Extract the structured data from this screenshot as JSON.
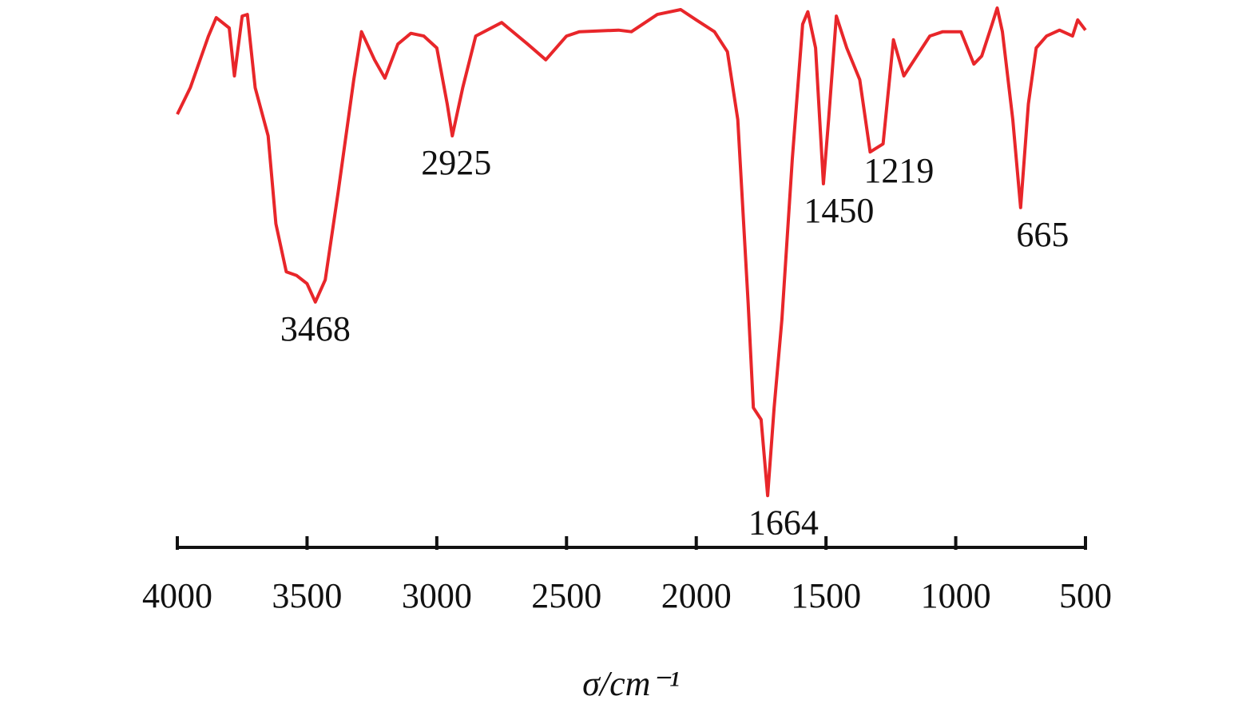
{
  "chart_data": {
    "type": "line",
    "xlabel": "σ/cm⁻¹",
    "xlim": [
      4000,
      500
    ],
    "xticks": [
      4000,
      3500,
      3000,
      2500,
      2000,
      1500,
      1000,
      500
    ],
    "ylim": [
      0,
      100
    ],
    "series": [
      {
        "color": "#e8262a",
        "x": [
          4000,
          3950,
          3880,
          3850,
          3800,
          3780,
          3750,
          3730,
          3700,
          3650,
          3620,
          3580,
          3540,
          3500,
          3468,
          3430,
          3380,
          3320,
          3290,
          3240,
          3200,
          3150,
          3100,
          3050,
          3000,
          2960,
          2940,
          2900,
          2850,
          2750,
          2650,
          2580,
          2500,
          2450,
          2300,
          2250,
          2150,
          2060,
          2000,
          1930,
          1880,
          1840,
          1800,
          1780,
          1750,
          1725,
          1700,
          1670,
          1630,
          1590,
          1570,
          1540,
          1510,
          1490,
          1460,
          1420,
          1370,
          1330,
          1280,
          1240,
          1200,
          1150,
          1100,
          1050,
          980,
          930,
          900,
          860,
          840,
          820,
          780,
          750,
          720,
          690,
          650,
          600,
          550,
          530,
          500
        ],
        "values": [
          80.3,
          85.2,
          94.8,
          98.2,
          96.3,
          87.4,
          98.5,
          98.8,
          85.2,
          76.3,
          60.0,
          51.1,
          50.4,
          48.9,
          45.5,
          49.6,
          65.9,
          86.7,
          95.6,
          90.4,
          87.0,
          93.3,
          95.3,
          94.8,
          92.6,
          82.2,
          76.3,
          85.2,
          94.8,
          97.3,
          93.3,
          90.4,
          94.8,
          95.6,
          95.9,
          95.6,
          98.8,
          99.7,
          97.8,
          95.6,
          91.9,
          79.3,
          45.2,
          25.9,
          23.7,
          9.6,
          25.9,
          42.2,
          71.9,
          97.0,
          99.3,
          92.6,
          67.4,
          79.3,
          98.5,
          92.6,
          86.7,
          73.3,
          74.8,
          94.1,
          87.4,
          91.1,
          94.8,
          95.6,
          95.6,
          89.6,
          91.1,
          97.0,
          100,
          95.6,
          79.3,
          63.0,
          82.2,
          92.6,
          94.8,
          95.9,
          94.8,
          97.8,
          95.9
        ]
      }
    ],
    "annotations": [
      3468,
      2925,
      1664,
      1450,
      1219,
      665
    ]
  }
}
